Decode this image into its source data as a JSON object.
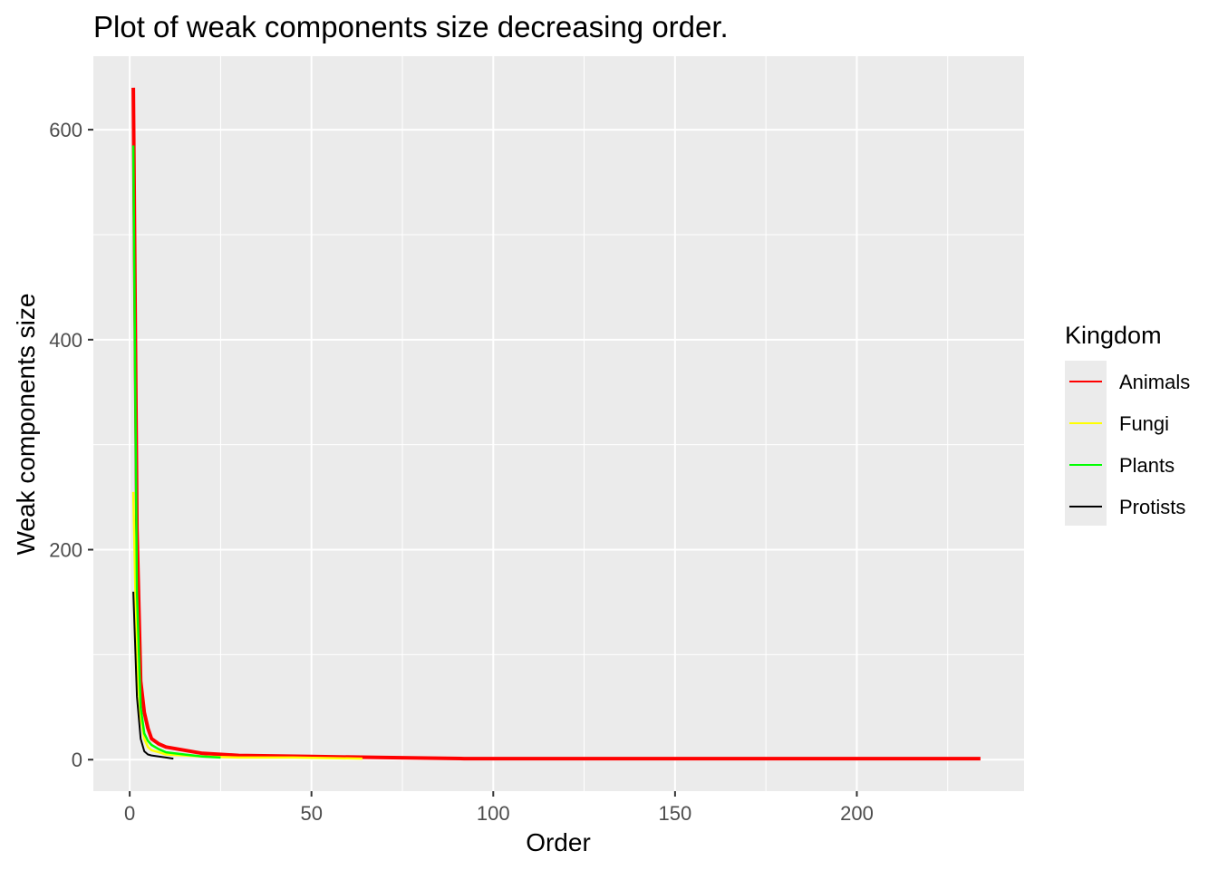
{
  "chart_data": {
    "type": "line",
    "title": "Plot of weak components size decreasing order.",
    "xlabel": "Order",
    "ylabel": "Weak components size",
    "xlim": [
      -10,
      246
    ],
    "ylim": [
      -30,
      670
    ],
    "xticks": [
      0,
      50,
      100,
      150,
      200
    ],
    "yticks": [
      0,
      200,
      400,
      600
    ],
    "grid": true,
    "legend": {
      "title": "Kingdom",
      "position": "right"
    },
    "series": [
      {
        "name": "Animals",
        "color": "#ff0000",
        "x": [
          1,
          2,
          3,
          4,
          5,
          6,
          8,
          10,
          15,
          20,
          30,
          50,
          70,
          92,
          150,
          234
        ],
        "y": [
          640,
          220,
          75,
          45,
          30,
          20,
          15,
          12,
          9,
          6,
          4,
          3,
          2,
          1,
          1,
          1
        ]
      },
      {
        "name": "Fungi",
        "color": "#ffff00",
        "x": [
          1,
          2,
          3,
          4,
          5,
          6,
          8,
          10,
          15,
          20,
          30,
          45,
          64
        ],
        "y": [
          255,
          90,
          40,
          20,
          12,
          9,
          7,
          5,
          4,
          3,
          2,
          2,
          1
        ]
      },
      {
        "name": "Plants",
        "color": "#00ff00",
        "x": [
          1,
          2,
          3,
          4,
          5,
          6,
          8,
          10,
          15,
          20,
          25
        ],
        "y": [
          585,
          160,
          50,
          25,
          18,
          14,
          10,
          7,
          5,
          3,
          2
        ]
      },
      {
        "name": "Protists",
        "color": "#000000",
        "x": [
          1,
          2,
          3,
          4,
          5,
          6,
          8,
          10,
          12
        ],
        "y": [
          160,
          60,
          20,
          8,
          5,
          4,
          3,
          2,
          1
        ]
      }
    ]
  }
}
